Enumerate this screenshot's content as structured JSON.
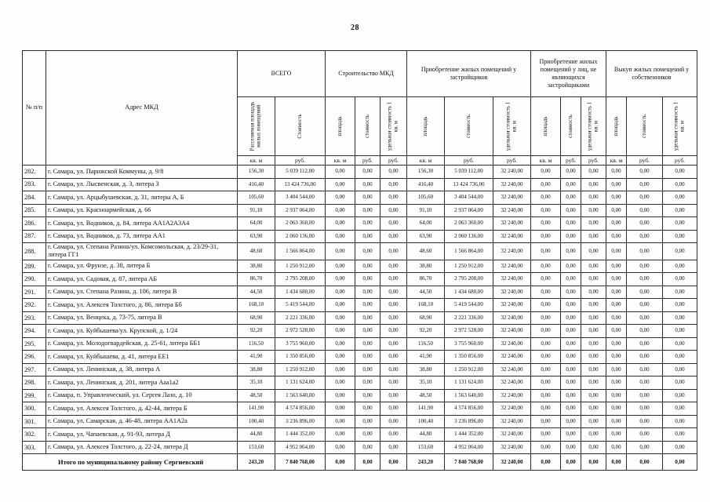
{
  "page": {
    "number": "28"
  },
  "table": {
    "col_num_label": "№ п/п",
    "col_address_label": "Адрес МКД",
    "groups": [
      {
        "title": "ВСЕГО",
        "subs": [
          "Расселяемая площадь жилых помещений",
          "Стоимость"
        ],
        "units": [
          "кв. м",
          "руб."
        ]
      },
      {
        "title": "Строительство МКД",
        "subs": [
          "площадь",
          "стоимость",
          "удельная стоимость 1 кв. м"
        ],
        "units": [
          "кв. м",
          "руб.",
          "руб."
        ]
      },
      {
        "title": "Приобретение жилых помещений у застройщиков",
        "subs": [
          "площадь",
          "стоимость",
          "удельная стоимость 1 кв. м"
        ],
        "units": [
          "кв. м",
          "руб.",
          "руб."
        ]
      },
      {
        "title": "Приобретение жилых помещений у лиц, не являющихся застройщиками",
        "subs": [
          "площадь",
          "стоимость",
          "удельная стоимость 1 кв. м"
        ],
        "units": [
          "кв. м",
          "руб.",
          "руб."
        ]
      },
      {
        "title": "Выкуп жилых помещений у собственников",
        "subs": [
          "площадь",
          "стоимость",
          "удельная стоимость 1 кв. м"
        ],
        "units": [
          "кв. м",
          "руб.",
          "руб."
        ]
      }
    ],
    "rows": [
      {
        "num": "282.",
        "address": "г. Самара, ул. Парижской Коммуны, д. 9/8",
        "values": [
          "156,30",
          "5 039 112,00",
          "0,00",
          "0,00",
          "0,00",
          "156,30",
          "5 039 112,00",
          "32 240,00",
          "0,00",
          "0,00",
          "0,00",
          "0,00",
          "0,00",
          "0,00"
        ]
      },
      {
        "num": "283.",
        "address": "г. Самара, ул. Лысвенская, д. 3, литера 3",
        "values": [
          "416,40",
          "13 424 736,00",
          "0,00",
          "0,00",
          "0,00",
          "416,40",
          "13 424 736,00",
          "32 240,00",
          "0,00",
          "0,00",
          "0,00",
          "0,00",
          "0,00",
          "0,00"
        ]
      },
      {
        "num": "284.",
        "address": "г. Самара, ул. Арцыбушевская, д. 31, литеры А, Б",
        "values": [
          "105,60",
          "3 404 544,00",
          "0,00",
          "0,00",
          "0,00",
          "105,60",
          "3 404 544,00",
          "32 240,00",
          "0,00",
          "0,00",
          "0,00",
          "0,00",
          "0,00",
          "0,00"
        ]
      },
      {
        "num": "285.",
        "address": "г. Самара, ул. Красноармейская, д. 66",
        "values": [
          "91,10",
          "2 937 064,00",
          "0,00",
          "0,00",
          "0,00",
          "91,10",
          "2 937 064,00",
          "32 240,00",
          "0,00",
          "0,00",
          "0,00",
          "0,00",
          "0,00",
          "0,00"
        ]
      },
      {
        "num": "286.",
        "address": "г. Самара, ул. Водников, д. 84, литера АА1А2А3А4",
        "values": [
          "64,00",
          "2 063 360,00",
          "0,00",
          "0,00",
          "0,00",
          "64,00",
          "2 063 360,00",
          "32 240,00",
          "0,00",
          "0,00",
          "0,00",
          "0,00",
          "0,00",
          "0,00"
        ]
      },
      {
        "num": "287.",
        "address": "г. Самара, ул. Водников, д. 73, литера АА1",
        "values": [
          "63,90",
          "2 060 136,00",
          "0,00",
          "0,00",
          "0,00",
          "63,90",
          "2 060 136,00",
          "32 240,00",
          "0,00",
          "0,00",
          "0,00",
          "0,00",
          "0,00",
          "0,00"
        ]
      },
      {
        "num": "288.",
        "address": "г. Самара, ул. Степана Разина/ул. Комсомольская, д. 23/29-31, литера ГГ1",
        "values": [
          "48,60",
          "1 566 864,00",
          "0,00",
          "0,00",
          "0,00",
          "48,60",
          "1 566 864,00",
          "32 240,00",
          "0,00",
          "0,00",
          "0,00",
          "0,00",
          "0,00",
          "0,00"
        ]
      },
      {
        "num": "289.",
        "address": "г. Самара, ул. Фрунзе, д. 38, литера Б",
        "values": [
          "38,80",
          "1 250 912,00",
          "0,00",
          "0,00",
          "0,00",
          "38,80",
          "1 250 912,00",
          "32 240,00",
          "0,00",
          "0,00",
          "0,00",
          "0,00",
          "0,00",
          "0,00"
        ]
      },
      {
        "num": "290.",
        "address": "г. Самара, ул. Садовая, д. 87, литера АБ",
        "values": [
          "86,70",
          "2 795 208,00",
          "0,00",
          "0,00",
          "0,00",
          "86,70",
          "2 795 208,00",
          "32 240,00",
          "0,00",
          "0,00",
          "0,00",
          "0,00",
          "0,00",
          "0,00"
        ]
      },
      {
        "num": "291.",
        "address": "г. Самара, ул. Степана Разина, д. 106, литера В",
        "values": [
          "44,50",
          "1 434 680,00",
          "0,00",
          "0,00",
          "0,00",
          "44,50",
          "1 434 680,00",
          "32 240,00",
          "0,00",
          "0,00",
          "0,00",
          "0,00",
          "0,00",
          "0,00"
        ]
      },
      {
        "num": "292.",
        "address": "г. Самара, ул. Алексея Толстого, д. 86, литера Бб",
        "values": [
          "168,10",
          "5 419 544,00",
          "0,00",
          "0,00",
          "0,00",
          "168,10",
          "5 419 544,00",
          "32 240,00",
          "0,00",
          "0,00",
          "0,00",
          "0,00",
          "0,00",
          "0,00"
        ]
      },
      {
        "num": "293.",
        "address": "г. Самара, ул. Венцека, д. 73-75, литера В",
        "values": [
          "68,90",
          "2 221 336,00",
          "0,00",
          "0,00",
          "0,00",
          "68,90",
          "2 221 336,00",
          "32 240,00",
          "0,00",
          "0,00",
          "0,00",
          "0,00",
          "0,00",
          "0,00"
        ]
      },
      {
        "num": "294.",
        "address": "г. Самара, ул. Куйбышева/ул. Крупской, д. 1/24",
        "values": [
          "92,20",
          "2 972 528,00",
          "0,00",
          "0,00",
          "0,00",
          "92,20",
          "2 972 528,00",
          "32 240,00",
          "0,00",
          "0,00",
          "0,00",
          "0,00",
          "0,00",
          "0,00"
        ]
      },
      {
        "num": "295.",
        "address": "г. Самара, ул. Молодогвардейская, д. 25-61, литера ББ1",
        "values": [
          "116,50",
          "3 755 960,00",
          "0,00",
          "0,00",
          "0,00",
          "116,50",
          "3 755 960,00",
          "32 240,00",
          "0,00",
          "0,00",
          "0,00",
          "0,00",
          "0,00",
          "0,00"
        ]
      },
      {
        "num": "296.",
        "address": "г. Самара, ул. Куйбышева, д. 41, литера ЕЕ1",
        "values": [
          "41,90",
          "1 350 856,00",
          "0,00",
          "0,00",
          "0,00",
          "41,90",
          "1 350 856,00",
          "32 240,00",
          "0,00",
          "0,00",
          "0,00",
          "0,00",
          "0,00",
          "0,00"
        ]
      },
      {
        "num": "297.",
        "address": "г. Самара, ул. Ленинская, д. 38, литера А",
        "values": [
          "38,80",
          "1 250 912,00",
          "0,00",
          "0,00",
          "0,00",
          "38,80",
          "1 250 912,00",
          "32 240,00",
          "0,00",
          "0,00",
          "0,00",
          "0,00",
          "0,00",
          "0,00"
        ]
      },
      {
        "num": "298.",
        "address": "г. Самара, ул. Ленинская, д. 201, литера Ааа1а2",
        "values": [
          "35,10",
          "1 131 624,00",
          "0,00",
          "0,00",
          "0,00",
          "35,10",
          "1 131 624,00",
          "32 240,00",
          "0,00",
          "0,00",
          "0,00",
          "0,00",
          "0,00",
          "0,00"
        ]
      },
      {
        "num": "299.",
        "address": "г. Самара, п. Управленческий, ул. Сергея Лазо, д. 10",
        "values": [
          "48,50",
          "1 563 640,00",
          "0,00",
          "0,00",
          "0,00",
          "48,50",
          "1 563 640,00",
          "32 240,00",
          "0,00",
          "0,00",
          "0,00",
          "0,00",
          "0,00",
          "0,00"
        ]
      },
      {
        "num": "300.",
        "address": "г. Самара, ул. Алексея Толстого, д. 42-44, литера Б",
        "values": [
          "141,90",
          "4 574 856,00",
          "0,00",
          "0,00",
          "0,00",
          "141,90",
          "4 574 856,00",
          "32 240,00",
          "0,00",
          "0,00",
          "0,00",
          "0,00",
          "0,00",
          "0,00"
        ]
      },
      {
        "num": "301.",
        "address": "г. Самара, ул. Самарская, д. 46-48, литера АА1А2а",
        "values": [
          "100,40",
          "3 236 896,00",
          "0,00",
          "0,00",
          "0,00",
          "100,40",
          "3 236 896,00",
          "32 240,00",
          "0,00",
          "0,00",
          "0,00",
          "0,00",
          "0,00",
          "0,00"
        ]
      },
      {
        "num": "302.",
        "address": "г. Самара, ул. Чапаевская, д. 91-93, литера Д",
        "values": [
          "44,80",
          "1 444 352,00",
          "0,00",
          "0,00",
          "0,00",
          "44,80",
          "1 444 352,00",
          "32 240,00",
          "0,00",
          "0,00",
          "0,00",
          "0,00",
          "0,00",
          "0,00"
        ]
      },
      {
        "num": "303.",
        "address": "г. Самара, ул. Алексея Толстого, д. 22-24, литера Д",
        "values": [
          "153,60",
          "4 952 064,00",
          "0,00",
          "0,00",
          "0,00",
          "153,60",
          "4 952 064,00",
          "32 240,00",
          "0,00",
          "0,00",
          "0,00",
          "0,00",
          "0,00",
          "0,00"
        ]
      }
    ],
    "total_row": {
      "label": "Итого по муниципальному району Сергиевский",
      "values": [
        "243,20",
        "7 840 768,00",
        "0,00",
        "0,00",
        "0,00",
        "243,20",
        "7 840 768,00",
        "32 240,00",
        "0,00",
        "0,00",
        "0,00",
        "0,00",
        "0,00",
        "0,00"
      ]
    }
  }
}
